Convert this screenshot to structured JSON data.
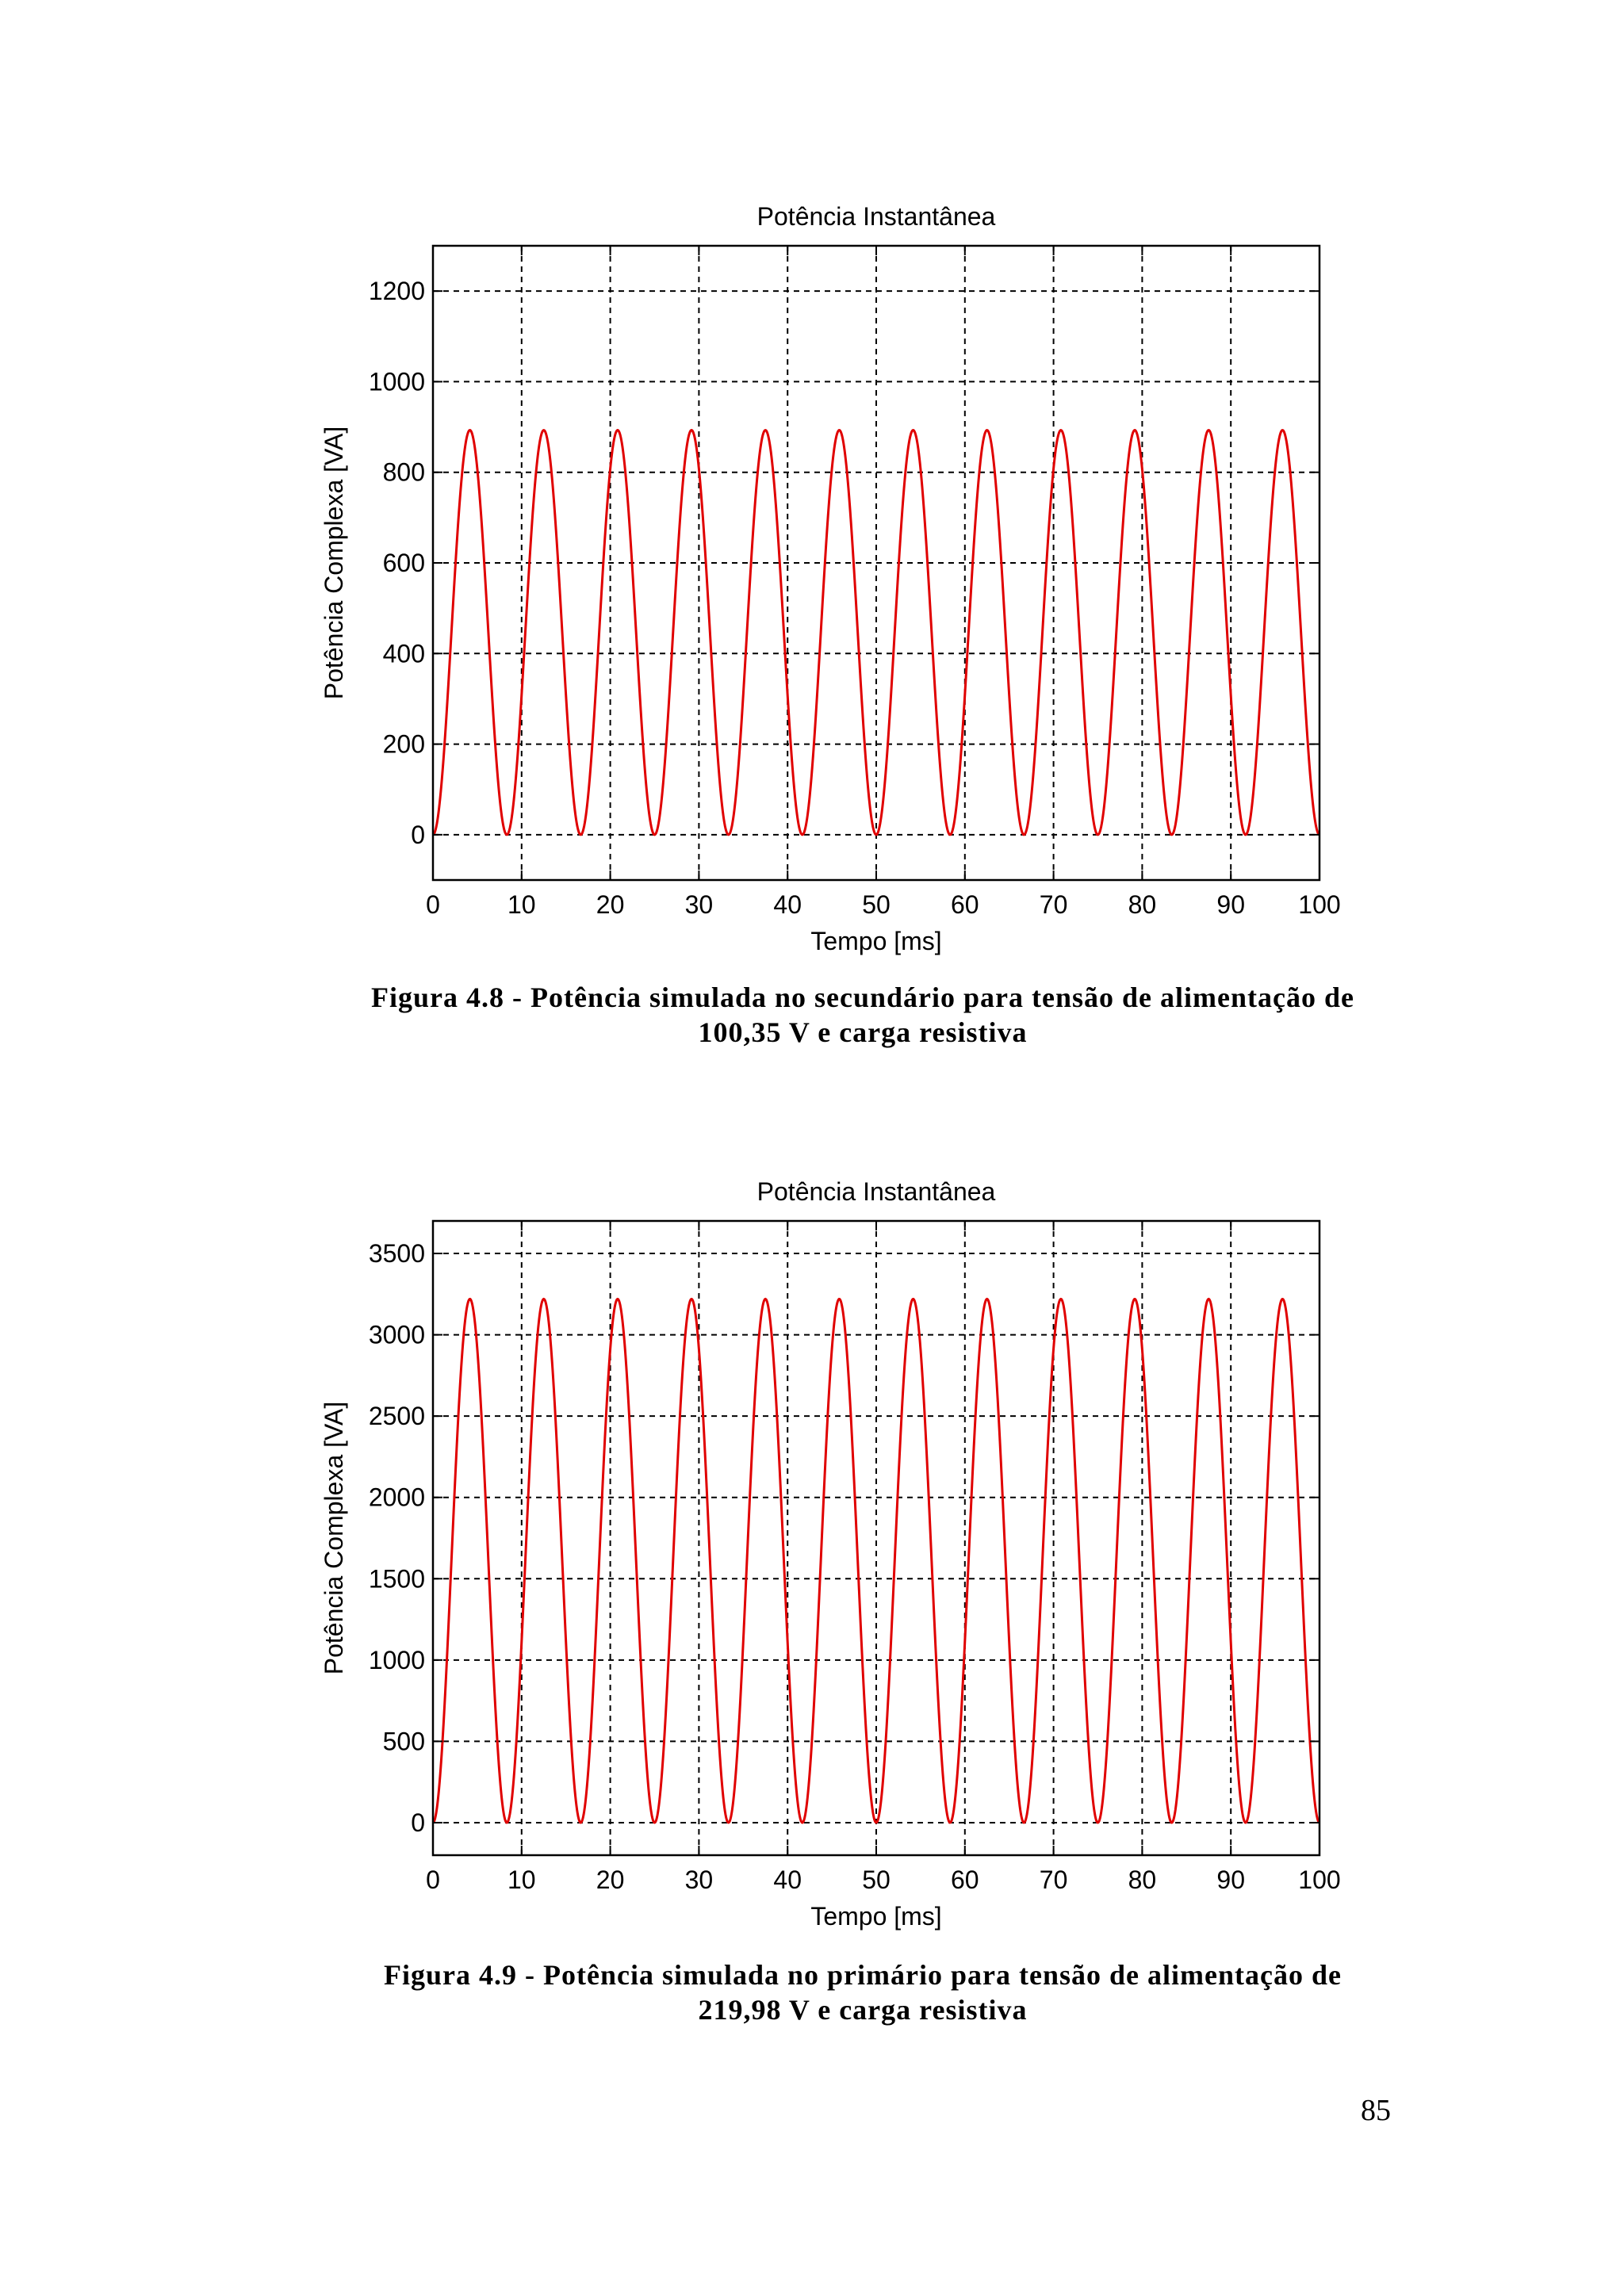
{
  "chart_data": [
    {
      "type": "line",
      "title": "Potência Instantânea",
      "xlabel": "Tempo [ms]",
      "ylabel": "Potência Complexa [VA]",
      "xlim": [
        0,
        100
      ],
      "ylim": [
        -100,
        1300
      ],
      "xticks": [
        0,
        10,
        20,
        30,
        40,
        50,
        60,
        70,
        80,
        90,
        100
      ],
      "yticks": [
        0,
        200,
        400,
        600,
        800,
        1000,
        1200
      ],
      "grid": true,
      "series": [
        {
          "name": "Potência Instantânea",
          "color": "#e00000",
          "formula": "p(t) = Pmax * sin^2(2*pi*60*t)",
          "peak": 893,
          "min": 0,
          "frequency_hz": 120,
          "period_ms": 8.333,
          "peaks_ms": [
            4.17,
            12.5,
            20.83,
            29.17,
            37.5,
            45.83,
            54.17,
            62.5,
            70.83,
            79.17,
            87.5,
            95.83
          ],
          "zeros_ms": [
            0,
            8.33,
            16.67,
            25,
            33.33,
            41.67,
            50,
            58.33,
            66.67,
            75,
            83.33,
            91.67,
            100
          ]
        }
      ]
    },
    {
      "type": "line",
      "title": "Potência Instantânea",
      "xlabel": "Tempo [ms]",
      "ylabel": "Potência Complexa [VA]",
      "xlim": [
        0,
        100
      ],
      "ylim": [
        -200,
        3700
      ],
      "xticks": [
        0,
        10,
        20,
        30,
        40,
        50,
        60,
        70,
        80,
        90,
        100
      ],
      "yticks": [
        0,
        500,
        1000,
        1500,
        2000,
        2500,
        3000,
        3500
      ],
      "grid": true,
      "series": [
        {
          "name": "Potência Instantânea",
          "color": "#e00000",
          "formula": "p(t) = Pmax * sin^2(2*pi*60*t)",
          "peak": 3220,
          "min": 0,
          "frequency_hz": 120,
          "period_ms": 8.333,
          "peaks_ms": [
            4.17,
            12.5,
            20.83,
            29.17,
            37.5,
            45.83,
            54.17,
            62.5,
            70.83,
            79.17,
            87.5,
            95.83
          ],
          "zeros_ms": [
            0,
            8.33,
            16.67,
            25,
            33.33,
            41.67,
            50,
            58.33,
            66.67,
            75,
            83.33,
            91.67,
            100
          ]
        }
      ]
    }
  ],
  "captions": {
    "figure_4_8_line1": "Figura 4.8 - Potência simulada no secundário para tensão de alimentação de",
    "figure_4_8_line2": "100,35 V e carga resistiva",
    "figure_4_9_line1": "Figura 4.9 - Potência simulada no primário para tensão de alimentação de",
    "figure_4_9_line2": "219,98 V e carga resistiva"
  },
  "page_number": "85"
}
